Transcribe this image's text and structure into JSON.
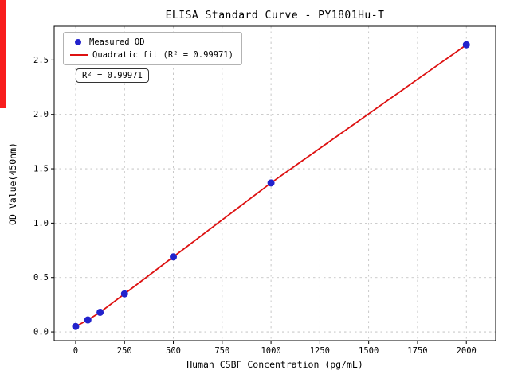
{
  "chart_data": {
    "type": "scatter",
    "title": "ELISA Standard Curve - PY1801Hu-T",
    "xlabel": "Human CSBF Concentration (pg/mL)",
    "ylabel": "OD Value(450nm)",
    "xlim": [
      -110,
      2150
    ],
    "ylim": [
      -0.08,
      2.81
    ],
    "xticks": [
      0,
      250,
      500,
      750,
      1000,
      1250,
      1500,
      1750,
      2000
    ],
    "xtick_labels": [
      "0",
      "250",
      "500",
      "750",
      "1000",
      "1250",
      "1500",
      "1750",
      "2000"
    ],
    "yticks": [
      0.0,
      0.5,
      1.0,
      1.5,
      2.0,
      2.5
    ],
    "ytick_labels": [
      "0.0",
      "0.5",
      "1.0",
      "1.5",
      "2.0",
      "2.5"
    ],
    "grid": true,
    "legend_position": "upper left",
    "annotation": "R² = 0.99971",
    "series": [
      {
        "name": "Measured OD",
        "type": "scatter",
        "color": "#2222cc",
        "points": [
          [
            0,
            0.05
          ],
          [
            62.5,
            0.11
          ],
          [
            125,
            0.18
          ],
          [
            250,
            0.35
          ],
          [
            500,
            0.69
          ],
          [
            1000,
            1.37
          ],
          [
            2000,
            2.64
          ]
        ]
      },
      {
        "name": "Quadratic fit (R² = 0.99971)",
        "type": "line",
        "color": "#dd1111",
        "points": [
          [
            0,
            0.05
          ],
          [
            62.5,
            0.11
          ],
          [
            125,
            0.18
          ],
          [
            250,
            0.35
          ],
          [
            500,
            0.69
          ],
          [
            1000,
            1.37
          ],
          [
            2000,
            2.64
          ]
        ]
      }
    ],
    "colors": {
      "grid": "#bbbbbb",
      "frame": "#000000",
      "tick": "#000000",
      "stripe": "#f81d1d"
    }
  }
}
